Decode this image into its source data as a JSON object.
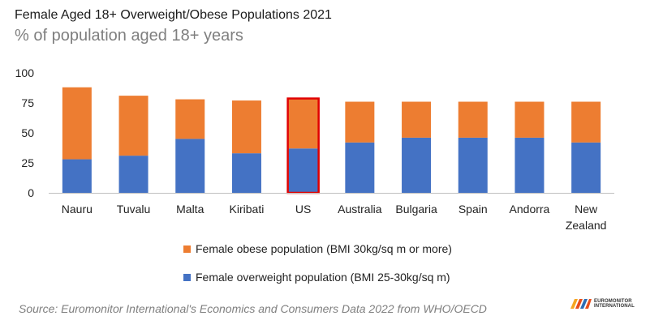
{
  "chart_data": {
    "type": "bar",
    "stacked": true,
    "title": "Female Aged 18+ Overweight/Obese Populations 2021",
    "subtitle": "% of population aged 18+ years",
    "categories": [
      "Nauru",
      "Tuvalu",
      "Malta",
      "Kiribati",
      "US",
      "Australia",
      "Bulgaria",
      "Spain",
      "Andorra",
      "New Zealand"
    ],
    "series": [
      {
        "name": "Female overweight population (BMI 25-30kg/sq m)",
        "color": "#4472c4",
        "values": [
          28,
          31,
          45,
          33,
          37,
          42,
          46,
          46,
          46,
          42
        ]
      },
      {
        "name": "Female obese population (BMI 30kg/sq m or more)",
        "color": "#ed7d31",
        "values": [
          60,
          50,
          33,
          44,
          41,
          34,
          30,
          30,
          30,
          34
        ]
      }
    ],
    "ylim": [
      0,
      100
    ],
    "yticks": [
      0,
      25,
      50,
      75,
      100
    ],
    "grid": false,
    "highlight_category": "US",
    "highlight_color": "#e00000",
    "legend_position": "bottom"
  },
  "source": "Source: Euromonitor International's Economics and Consumers Data 2022 from WHO/OECD",
  "logo": {
    "line1": "EUROMONITOR",
    "line2": "INTERNATIONAL",
    "colors": [
      "#f5a623",
      "#e94e1b",
      "#2e6db4"
    ]
  }
}
